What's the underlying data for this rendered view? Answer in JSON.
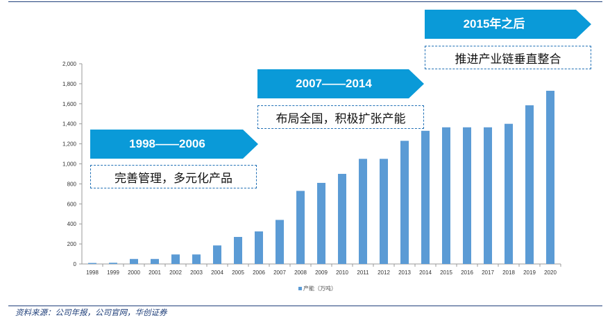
{
  "chart_data": {
    "type": "bar",
    "categories": [
      "1998",
      "1999",
      "2000",
      "2001",
      "2002",
      "2003",
      "2004",
      "2005",
      "2006",
      "2007",
      "2008",
      "2009",
      "2010",
      "2011",
      "2012",
      "2013",
      "2014",
      "2015",
      "2016",
      "2017",
      "2018",
      "2019",
      "2020"
    ],
    "series": [
      {
        "name": "产能（万吨）",
        "values": [
          10,
          12,
          50,
          50,
          95,
          95,
          185,
          270,
          325,
          440,
          730,
          810,
          900,
          1050,
          1050,
          1230,
          1330,
          1365,
          1365,
          1365,
          1400,
          1585,
          1730
        ]
      }
    ],
    "ylim": [
      0,
      2000
    ],
    "yticks": [
      0,
      200,
      400,
      600,
      800,
      1000,
      1200,
      1400,
      1600,
      1800,
      2000
    ],
    "ytick_labels": [
      "0",
      "200",
      "400",
      "600",
      "800",
      "1,000",
      "1,200",
      "1,400",
      "1,600",
      "1,800",
      "2,000"
    ],
    "legend_position": "bottom",
    "grid": false,
    "bar_color": "#5b9bd5"
  },
  "annotations": [
    {
      "period": "1998——2006",
      "description": "完善管理，多元化产品"
    },
    {
      "period": "2007——2014",
      "description": "布局全国，积极扩张产能"
    },
    {
      "period": "2015年之后",
      "description": "推进产业链垂直整合"
    }
  ],
  "colors": {
    "banner": "#0a9ad8",
    "dash_border": "#1f6fb5",
    "source_text": "#1f3f7a"
  },
  "source": "资料来源：公司年报，公司官网，华创证券"
}
